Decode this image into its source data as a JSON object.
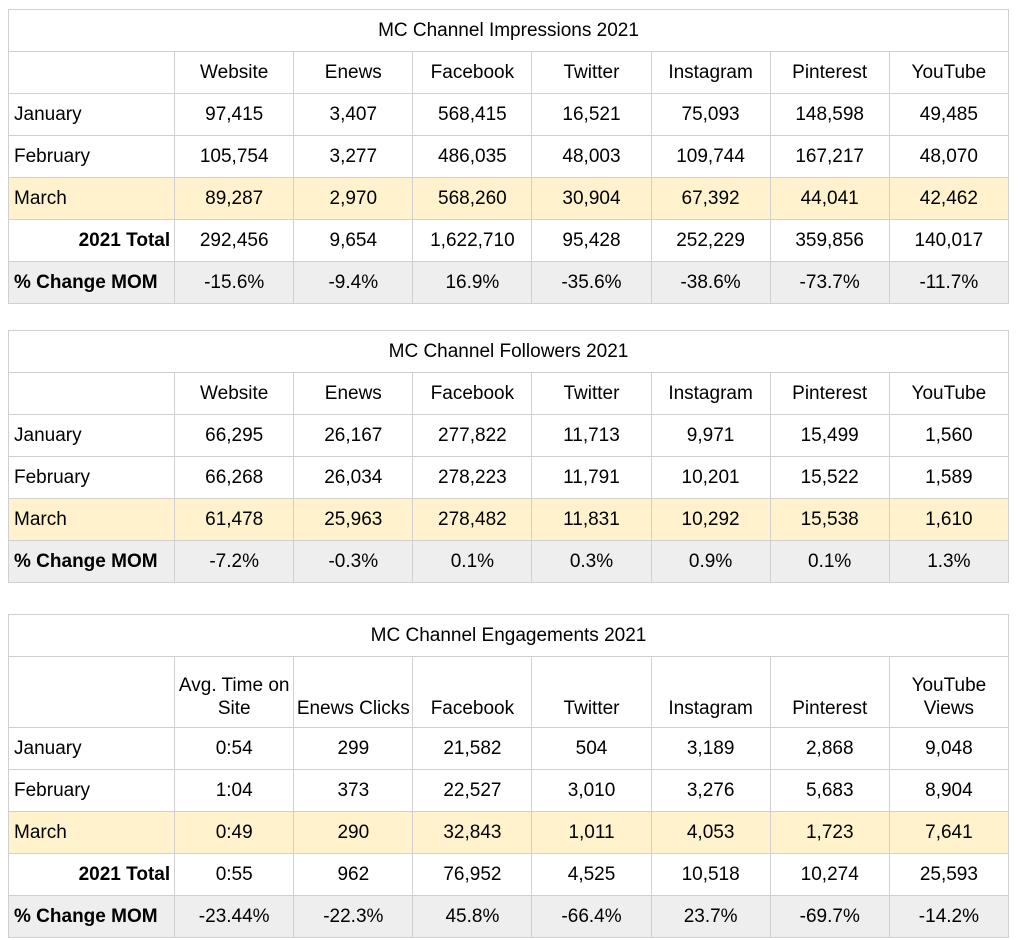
{
  "tables": [
    {
      "title": "MC Channel Impressions 2021",
      "headers": [
        "Website",
        "Enews",
        "Facebook",
        "Twitter",
        "Instagram",
        "Pinterest",
        "YouTube"
      ],
      "rows": [
        {
          "label": "January",
          "cells": [
            "97,415",
            "3,407",
            "568,415",
            "16,521",
            "75,093",
            "148,598",
            "49,485"
          ]
        },
        {
          "label": "February",
          "cells": [
            "105,754",
            "3,277",
            "486,035",
            "48,003",
            "109,744",
            "167,217",
            "48,070"
          ]
        },
        {
          "label": "March",
          "cells": [
            "89,287",
            "2,970",
            "568,260",
            "30,904",
            "67,392",
            "44,041",
            "42,462"
          ]
        },
        {
          "label": "2021 Total",
          "cells": [
            "292,456",
            "9,654",
            "1,622,710",
            "95,428",
            "252,229",
            "359,856",
            "140,017"
          ]
        },
        {
          "label": "% Change MOM",
          "cells": [
            "-15.6%",
            "-9.4%",
            "16.9%",
            "-35.6%",
            "-38.6%",
            "-73.7%",
            "-11.7%"
          ]
        }
      ]
    },
    {
      "title": "MC Channel Followers 2021",
      "headers": [
        "Website",
        "Enews",
        "Facebook",
        "Twitter",
        "Instagram",
        "Pinterest",
        "YouTube"
      ],
      "rows": [
        {
          "label": "January",
          "cells": [
            "66,295",
            "26,167",
            "277,822",
            "11,713",
            "9,971",
            "15,499",
            "1,560"
          ]
        },
        {
          "label": "February",
          "cells": [
            "66,268",
            "26,034",
            "278,223",
            "11,791",
            "10,201",
            "15,522",
            "1,589"
          ]
        },
        {
          "label": "March",
          "cells": [
            "61,478",
            "25,963",
            "278,482",
            "11,831",
            "10,292",
            "15,538",
            "1,610"
          ]
        },
        {
          "label": "% Change MOM",
          "cells": [
            "-7.2%",
            "-0.3%",
            "0.1%",
            "0.3%",
            "0.9%",
            "0.1%",
            "1.3%"
          ]
        }
      ]
    },
    {
      "title": "MC Channel Engagements 2021",
      "headers": [
        "Avg. Time on Site",
        "Enews Clicks",
        "Facebook",
        "Twitter",
        "Instagram",
        "Pinterest",
        "YouTube Views"
      ],
      "rows": [
        {
          "label": "January",
          "cells": [
            "0:54",
            "299",
            "21,582",
            "504",
            "3,189",
            "2,868",
            "9,048"
          ]
        },
        {
          "label": "February",
          "cells": [
            "1:04",
            "373",
            "22,527",
            "3,010",
            "3,276",
            "5,683",
            "8,904"
          ]
        },
        {
          "label": "March",
          "cells": [
            "0:49",
            "290",
            "32,843",
            "1,011",
            "4,053",
            "1,723",
            "7,641"
          ]
        },
        {
          "label": "2021 Total",
          "cells": [
            "0:55",
            "962",
            "76,952",
            "4,525",
            "10,518",
            "10,274",
            "25,593"
          ]
        },
        {
          "label": "% Change MOM",
          "cells": [
            "-23.44%",
            "-22.3%",
            "45.8%",
            "-66.4%",
            "23.7%",
            "-69.7%",
            "-14.2%"
          ]
        }
      ]
    }
  ]
}
